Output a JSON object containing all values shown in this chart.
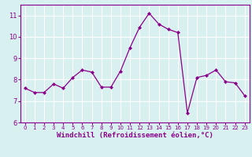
{
  "x": [
    0,
    1,
    2,
    3,
    4,
    5,
    6,
    7,
    8,
    9,
    10,
    11,
    12,
    13,
    14,
    15,
    16,
    17,
    18,
    19,
    20,
    21,
    22,
    23
  ],
  "y": [
    7.6,
    7.4,
    7.4,
    7.8,
    7.6,
    8.1,
    8.45,
    8.35,
    7.65,
    7.65,
    8.4,
    9.5,
    10.45,
    11.1,
    10.6,
    10.35,
    10.2,
    6.45,
    8.1,
    8.2,
    8.45,
    7.9,
    7.85,
    7.25
  ],
  "line_color": "#8b008b",
  "marker": "D",
  "marker_size": 2.0,
  "xlabel": "Windchill (Refroidissement éolien,°C)",
  "xlabel_fontsize": 6.5,
  "xlabel_color": "#8b008b",
  "background_color": "#d8f0f0",
  "grid_color": "#b0d8d8",
  "tick_color": "#8b008b",
  "ylim": [
    6,
    11.5
  ],
  "xlim": [
    -0.5,
    23.5
  ],
  "yticks": [
    6,
    7,
    8,
    9,
    10,
    11
  ],
  "xticks": [
    0,
    1,
    2,
    3,
    4,
    5,
    6,
    7,
    8,
    9,
    10,
    11,
    12,
    13,
    14,
    15,
    16,
    17,
    18,
    19,
    20,
    21,
    22,
    23
  ],
  "spine_color": "#8b008b"
}
